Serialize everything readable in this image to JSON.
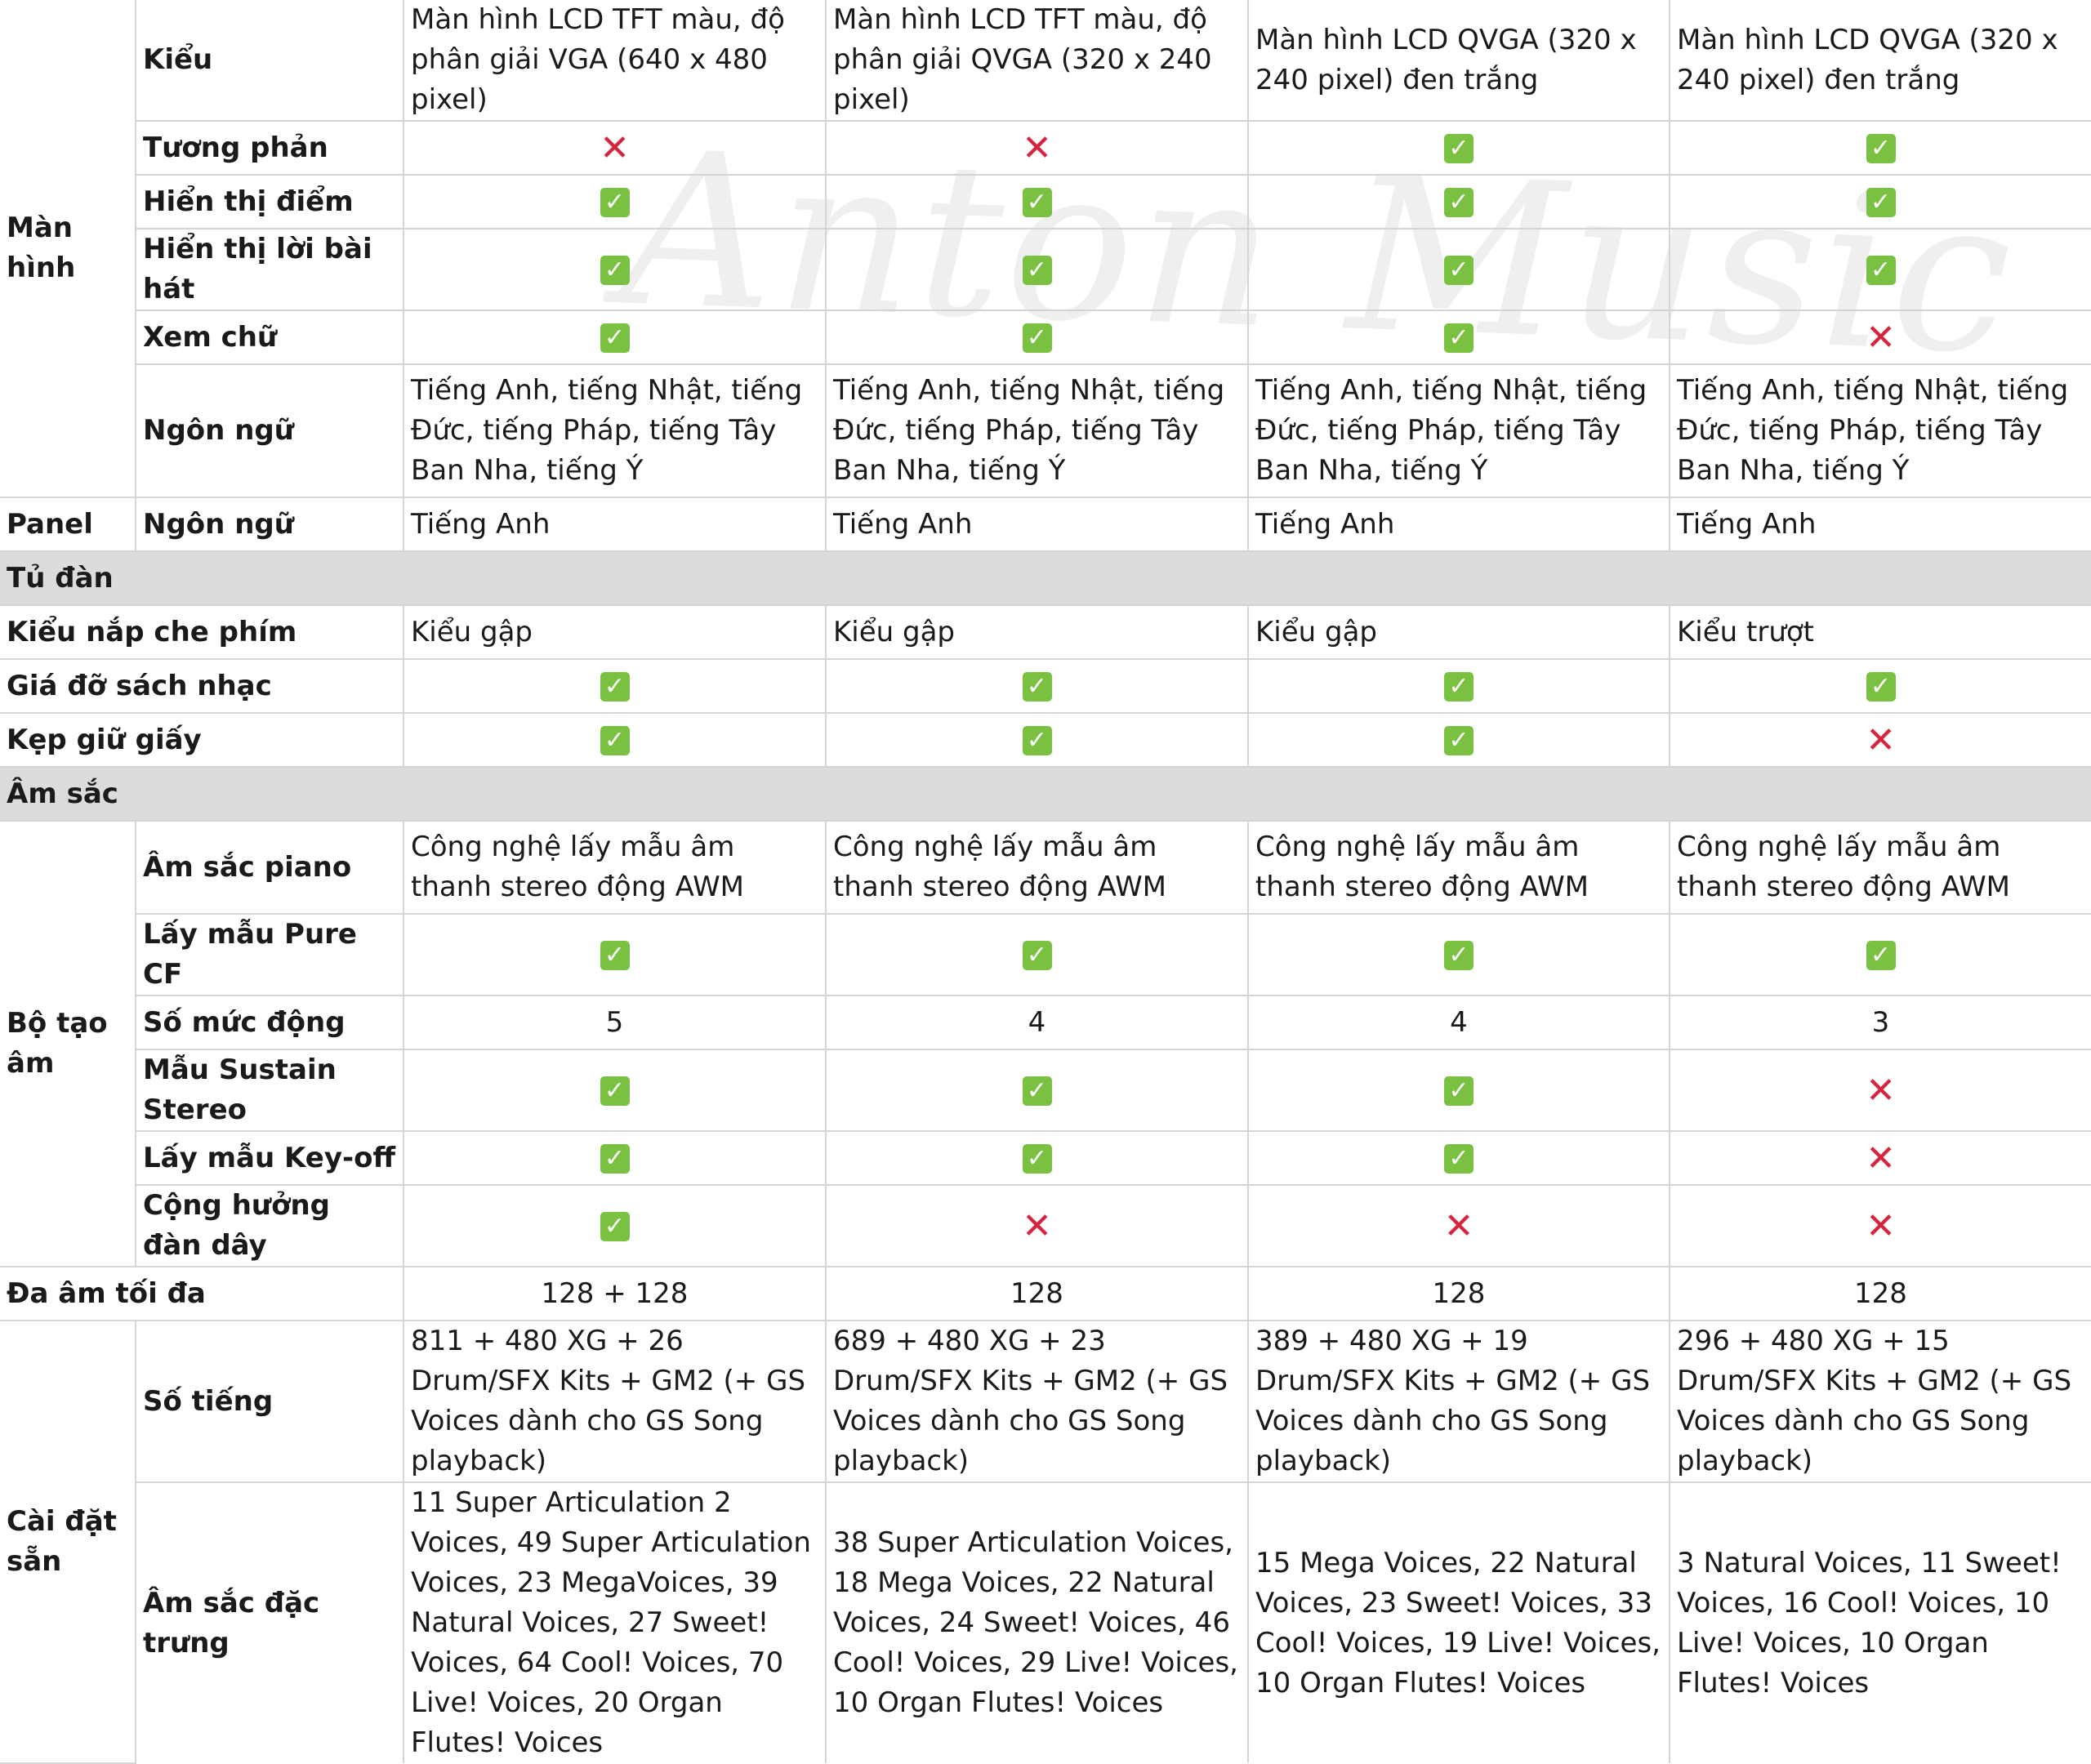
{
  "watermark": "Anton Music",
  "groups": {
    "man_hinh": "Màn hình",
    "panel": "Panel",
    "bo_tao_am": "Bộ tạo âm",
    "cai_dat_san": "Cài đặt sẵn"
  },
  "sections": {
    "tu_dan": "Tủ đàn",
    "am_sac": "Âm sắc"
  },
  "rows": {
    "kieu": {
      "label": "Kiểu",
      "values": [
        "Màn hình LCD TFT màu, độ phân giải VGA (640 x 480 pixel)",
        "Màn hình LCD TFT màu, độ phân giải QVGA (320 x 240 pixel)",
        "Màn hình LCD QVGA (320 x 240 pixel) đen trắng",
        "Màn hình LCD QVGA (320 x 240 pixel) đen trắng"
      ]
    },
    "tuong_phan": {
      "label": "Tương phản",
      "values": [
        "no",
        "no",
        "yes",
        "yes"
      ]
    },
    "hien_thi_diem": {
      "label": "Hiển thị điểm",
      "values": [
        "yes",
        "yes",
        "yes",
        "yes"
      ]
    },
    "hien_thi_loi": {
      "label": "Hiển thị lời bài hát",
      "values": [
        "yes",
        "yes",
        "yes",
        "yes"
      ]
    },
    "xem_chu": {
      "label": "Xem chữ",
      "values": [
        "yes",
        "yes",
        "yes",
        "no"
      ]
    },
    "ngon_ngu": {
      "label": "Ngôn ngữ",
      "values": [
        "Tiếng Anh, tiếng Nhật, tiếng Đức, tiếng Pháp, tiếng Tây Ban Nha, tiếng Ý",
        "Tiếng Anh, tiếng Nhật, tiếng Đức, tiếng Pháp, tiếng Tây Ban Nha, tiếng Ý",
        "Tiếng Anh, tiếng Nhật, tiếng Đức, tiếng Pháp, tiếng Tây Ban Nha, tiếng Ý",
        "Tiếng Anh, tiếng Nhật, tiếng Đức, tiếng Pháp, tiếng Tây Ban Nha, tiếng Ý"
      ]
    },
    "panel_ngon_ngu": {
      "label": "Ngôn ngữ",
      "values": [
        "Tiếng Anh",
        "Tiếng Anh",
        "Tiếng Anh",
        "Tiếng Anh"
      ]
    },
    "kieu_nap": {
      "label": "Kiểu nắp che phím",
      "values": [
        "Kiểu gập",
        "Kiểu gập",
        "Kiểu gập",
        "Kiểu trượt"
      ]
    },
    "gia_do": {
      "label": "Giá đỡ sách nhạc",
      "values": [
        "yes",
        "yes",
        "yes",
        "yes"
      ]
    },
    "kep_giu": {
      "label": "Kẹp giữ giấy",
      "values": [
        "yes",
        "yes",
        "yes",
        "no"
      ]
    },
    "am_sac_piano": {
      "label": "Âm sắc piano",
      "values": [
        "Công nghệ lấy mẫu âm thanh stereo động AWM",
        "Công nghệ lấy mẫu âm thanh stereo động AWM",
        "Công nghệ lấy mẫu âm thanh stereo động AWM",
        "Công nghệ lấy mẫu âm thanh stereo động AWM"
      ]
    },
    "pure_cf": {
      "label": "Lấy mẫu Pure CF",
      "values": [
        "yes",
        "yes",
        "yes",
        "yes"
      ]
    },
    "so_muc": {
      "label": "Số mức động",
      "values": [
        "5",
        "4",
        "4",
        "3"
      ]
    },
    "sustain": {
      "label": "Mẫu Sustain Stereo",
      "values": [
        "yes",
        "yes",
        "yes",
        "no"
      ]
    },
    "key_off": {
      "label": "Lấy mẫu Key-off",
      "values": [
        "yes",
        "yes",
        "yes",
        "no"
      ]
    },
    "cong_huong": {
      "label": "Cộng hưởng đàn dây",
      "values": [
        "yes",
        "no",
        "no",
        "no"
      ]
    },
    "da_am": {
      "label": "Đa âm tối đa",
      "values": [
        "128 + 128",
        "128",
        "128",
        "128"
      ]
    },
    "so_tieng": {
      "label": "Số tiếng",
      "values": [
        "811 + 480 XG + 26 Drum/SFX Kits + GM2 (+ GS Voices dành cho GS Song playback)",
        "689 + 480 XG + 23 Drum/SFX Kits + GM2 (+ GS Voices dành cho GS Song playback)",
        "389 + 480 XG + 19 Drum/SFX Kits + GM2 (+ GS Voices dành cho GS Song playback)",
        "296 + 480 XG + 15 Drum/SFX Kits + GM2 (+ GS Voices dành cho GS Song playback)"
      ]
    },
    "am_sac_dac_trung": {
      "label": "Âm sắc đặc trưng",
      "values": [
        "11 Super Articulation 2 Voices, 49 Super Articulation Voices, 23 MegaVoices, 39 Natural Voices, 27 Sweet! Voices, 64 Cool! Voices, 70 Live! Voices, 20 Organ Flutes! Voices",
        "38 Super Articulation Voices, 18 Mega Voices, 22 Natural Voices, 24 Sweet! Voices, 46 Cool! Voices, 29 Live! Voices, 10 Organ Flutes! Voices",
        "15 Mega Voices, 22 Natural Voices, 23 Sweet! Voices, 33 Cool! Voices, 19 Live! Voices, 10 Organ Flutes! Voices",
        "3 Natural Voices, 11 Sweet! Voices, 16 Cool! Voices, 10 Live! Voices, 10 Organ Flutes! Voices"
      ]
    }
  },
  "icons": {
    "yes": "check-icon",
    "no": "cross-icon"
  },
  "colors": {
    "check_green": "#7ac142",
    "cross_red": "#d5253f",
    "section_gray": "#dcdcdc",
    "border": "#d4d4d4"
  }
}
